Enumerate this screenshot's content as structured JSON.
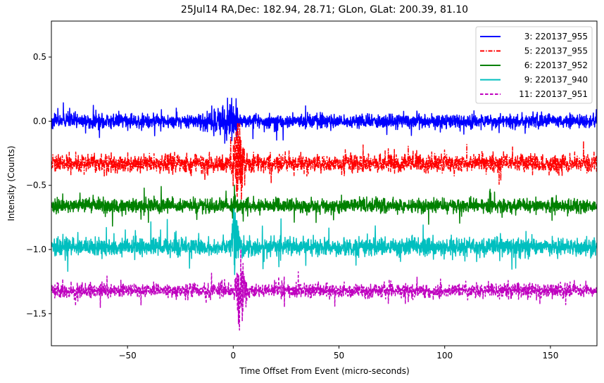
{
  "chart_data": {
    "type": "line",
    "title": "25Jul14 RA,Dec:  182.94,  28.71; GLon, GLat:  200.39,  81.10",
    "xlabel": "Time Offset From Event (micro-seconds)",
    "ylabel": "Intensity (Counts)",
    "xlim": [
      -86,
      172
    ],
    "ylim": [
      -1.75,
      0.78
    ],
    "xticks": [
      -50,
      0,
      50,
      100,
      150
    ],
    "xtick_labels": [
      "−50",
      "0",
      "50",
      "100",
      "150"
    ],
    "yticks": [
      0.5,
      0.0,
      -0.5,
      -1.0,
      -1.5
    ],
    "ytick_labels": [
      "0.5",
      "0.0",
      "−0.5",
      "−1.0",
      "−1.5"
    ],
    "grid": false,
    "legend_position": "upper right",
    "series": [
      {
        "name": "3: 220137_955",
        "label": "   3: 220137_955",
        "color": "#0000ff",
        "linestyle": "solid",
        "baseline": 0.0,
        "noise": 0.035,
        "event": {
          "type": "pre_burst",
          "start": -20,
          "end": 2,
          "amp": 0.28
        }
      },
      {
        "name": "5: 220137_955",
        "label": "   5: 220137_955",
        "color": "#ff0000",
        "linestyle": "dashdot",
        "baseline": -0.33,
        "noise": 0.045,
        "event": {
          "type": "burst",
          "start": -1,
          "end": 6,
          "amp": 0.33
        }
      },
      {
        "name": "6: 220137_952",
        "label": "   6: 220137_952",
        "color": "#008000",
        "linestyle": "solid",
        "baseline": -0.66,
        "noise": 0.035,
        "event": {
          "type": "spike",
          "start": -1,
          "end": 1,
          "amp": 0.1
        }
      },
      {
        "name": "9: 220137_940",
        "label": "   9: 220137_940",
        "color": "#00bfbf",
        "linestyle": "solid",
        "baseline": -0.98,
        "noise": 0.045,
        "event": {
          "type": "spike_up",
          "start": -1,
          "end": 3,
          "amp": 0.38
        }
      },
      {
        "name": "11: 220137_951",
        "label": "11: 220137_951",
        "color": "#bf00bf",
        "linestyle": "dashed",
        "baseline": -1.32,
        "noise": 0.035,
        "event": {
          "type": "burst",
          "start": 0,
          "end": 6,
          "amp": 0.32
        }
      }
    ]
  }
}
